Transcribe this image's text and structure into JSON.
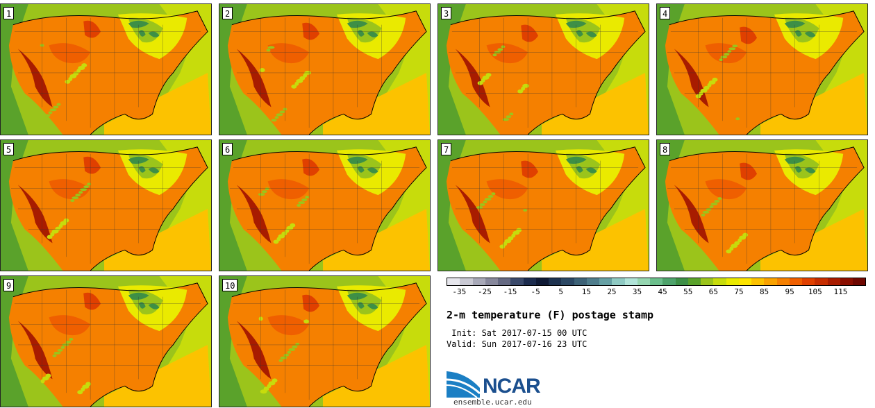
{
  "panels": [
    {
      "label": "1"
    },
    {
      "label": "2"
    },
    {
      "label": "3"
    },
    {
      "label": "4"
    },
    {
      "label": "5"
    },
    {
      "label": "6"
    },
    {
      "label": "7"
    },
    {
      "label": "8"
    },
    {
      "label": "9"
    },
    {
      "label": "10"
    }
  ],
  "colorbar": {
    "colors": [
      "#e6e6ec",
      "#c9c9d3",
      "#a8a9b8",
      "#87889c",
      "#666a83",
      "#3b4a6b",
      "#1c2c4e",
      "#0f1a35",
      "#1e3350",
      "#2c4864",
      "#3d6277",
      "#4f7d8c",
      "#66a0a4",
      "#8fcac3",
      "#b0e3d8",
      "#95d5b0",
      "#6cbf8c",
      "#4ea36b",
      "#3d8f46",
      "#5aa22b",
      "#9bc41b",
      "#c7dc0c",
      "#eaea00",
      "#fde400",
      "#fcc200",
      "#f9a200",
      "#f58000",
      "#ef5f00",
      "#e04000",
      "#c62d00",
      "#a81c00",
      "#8a0e00",
      "#6e0700"
    ],
    "tick_labels": [
      "-35",
      "-25",
      "-15",
      "-5",
      "5",
      "15",
      "25",
      "35",
      "45",
      "55",
      "65",
      "75",
      "85",
      "95",
      "105",
      "115"
    ],
    "tick_values": [
      -35,
      -25,
      -15,
      -5,
      5,
      15,
      25,
      35,
      45,
      55,
      65,
      75,
      85,
      95,
      105,
      115
    ],
    "min": -40,
    "max": 125
  },
  "title": "2-m temperature (F) postage stamp",
  "init_line": " Init: Sat 2017-07-15 00 UTC",
  "valid_line": "Valid: Sun 2017-07-16 23 UTC",
  "logo_text": "NCAR",
  "site": "ensemble.ucar.edu",
  "colors": {
    "ocean_green": "#8cc63f",
    "gulf_yellow": "#fcc200",
    "land_orange": "#f58000",
    "hot_red": "#a81c00",
    "lakes": "#3d8f46",
    "ncar_blue": "#1b4f8e"
  }
}
